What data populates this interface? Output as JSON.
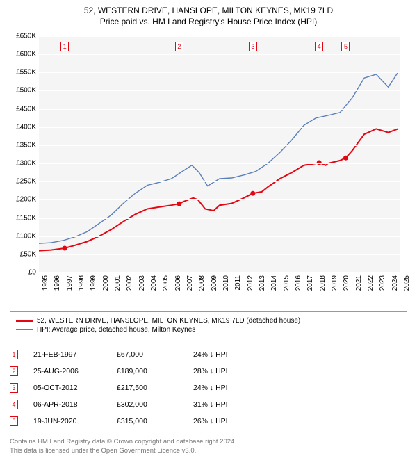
{
  "title": "52, WESTERN DRIVE, HANSLOPE, MILTON KEYNES, MK19 7LD",
  "subtitle": "Price paid vs. HM Land Registry's House Price Index (HPI)",
  "chart": {
    "type": "line",
    "background_color": "#f5f5f5",
    "grid_color": "#ffffff",
    "plot_fontsize": 10,
    "y": {
      "min": 0,
      "max": 650000,
      "step": 50000,
      "labels": [
        "£0",
        "£50K",
        "£100K",
        "£150K",
        "£200K",
        "£250K",
        "£300K",
        "£350K",
        "£400K",
        "£450K",
        "£500K",
        "£550K",
        "£600K",
        "£650K"
      ]
    },
    "x": {
      "min": 1995,
      "max": 2025,
      "step": 1,
      "labels": [
        "1995",
        "1996",
        "1997",
        "1998",
        "1999",
        "2000",
        "2001",
        "2002",
        "2003",
        "2004",
        "2005",
        "2006",
        "2007",
        "2008",
        "2009",
        "2010",
        "2011",
        "2012",
        "2013",
        "2014",
        "2015",
        "2016",
        "2017",
        "2018",
        "2019",
        "2020",
        "2021",
        "2022",
        "2023",
        "2024",
        "2025"
      ]
    },
    "series": [
      {
        "name": "property",
        "label": "52, WESTERN DRIVE, HANSLOPE, MILTON KEYNES, MK19 7LD (detached house)",
        "color": "#e30613",
        "line_width": 2,
        "points": [
          [
            1995.0,
            60000
          ],
          [
            1996.0,
            62000
          ],
          [
            1997.14,
            67000
          ],
          [
            1998.0,
            75000
          ],
          [
            1999.0,
            85000
          ],
          [
            2000.0,
            100000
          ],
          [
            2001.0,
            118000
          ],
          [
            2002.0,
            140000
          ],
          [
            2003.0,
            160000
          ],
          [
            2004.0,
            175000
          ],
          [
            2005.0,
            180000
          ],
          [
            2006.0,
            185000
          ],
          [
            2006.65,
            189000
          ],
          [
            2007.0,
            195000
          ],
          [
            2007.8,
            205000
          ],
          [
            2008.2,
            200000
          ],
          [
            2008.8,
            175000
          ],
          [
            2009.5,
            170000
          ],
          [
            2010.0,
            185000
          ],
          [
            2011.0,
            190000
          ],
          [
            2012.0,
            205000
          ],
          [
            2012.76,
            217500
          ],
          [
            2013.5,
            222000
          ],
          [
            2014.0,
            235000
          ],
          [
            2015.0,
            258000
          ],
          [
            2016.0,
            275000
          ],
          [
            2017.0,
            295000
          ],
          [
            2018.0,
            300000
          ],
          [
            2018.26,
            302000
          ],
          [
            2018.8,
            295000
          ],
          [
            2019.0,
            300000
          ],
          [
            2020.0,
            308000
          ],
          [
            2020.47,
            315000
          ],
          [
            2021.0,
            335000
          ],
          [
            2022.0,
            380000
          ],
          [
            2023.0,
            395000
          ],
          [
            2024.0,
            385000
          ],
          [
            2024.8,
            395000
          ]
        ]
      },
      {
        "name": "hpi",
        "label": "HPI: Average price, detached house, Milton Keynes",
        "color": "#5b7fb8",
        "line_width": 1.4,
        "points": [
          [
            1995.0,
            80000
          ],
          [
            1996.0,
            82000
          ],
          [
            1997.0,
            88000
          ],
          [
            1998.0,
            98000
          ],
          [
            1999.0,
            112000
          ],
          [
            2000.0,
            135000
          ],
          [
            2001.0,
            158000
          ],
          [
            2002.0,
            190000
          ],
          [
            2003.0,
            218000
          ],
          [
            2004.0,
            240000
          ],
          [
            2005.0,
            248000
          ],
          [
            2006.0,
            258000
          ],
          [
            2007.0,
            280000
          ],
          [
            2007.7,
            295000
          ],
          [
            2008.3,
            275000
          ],
          [
            2009.0,
            238000
          ],
          [
            2010.0,
            258000
          ],
          [
            2011.0,
            260000
          ],
          [
            2012.0,
            268000
          ],
          [
            2013.0,
            278000
          ],
          [
            2014.0,
            300000
          ],
          [
            2015.0,
            330000
          ],
          [
            2016.0,
            365000
          ],
          [
            2017.0,
            405000
          ],
          [
            2018.0,
            425000
          ],
          [
            2019.0,
            432000
          ],
          [
            2020.0,
            440000
          ],
          [
            2021.0,
            480000
          ],
          [
            2022.0,
            535000
          ],
          [
            2023.0,
            545000
          ],
          [
            2024.0,
            510000
          ],
          [
            2024.8,
            550000
          ]
        ]
      }
    ],
    "sale_markers": [
      {
        "n": "1",
        "x": 1997.14,
        "y": 67000
      },
      {
        "n": "2",
        "x": 2006.65,
        "y": 189000
      },
      {
        "n": "3",
        "x": 2012.76,
        "y": 217500
      },
      {
        "n": "4",
        "x": 2018.26,
        "y": 302000
      },
      {
        "n": "5",
        "x": 2020.47,
        "y": 315000
      }
    ],
    "marker_color": "#e30613",
    "marker_fill": "#e30613"
  },
  "legend": {
    "items": [
      {
        "color": "#e30613",
        "width": 2,
        "label": "52, WESTERN DRIVE, HANSLOPE, MILTON KEYNES, MK19 7LD (detached house)"
      },
      {
        "color": "#5b7fb8",
        "width": 1.4,
        "label": "HPI: Average price, detached house, Milton Keynes"
      }
    ]
  },
  "transactions": [
    {
      "n": "1",
      "date": "21-FEB-1997",
      "price": "£67,000",
      "diff": "24% ↓ HPI"
    },
    {
      "n": "2",
      "date": "25-AUG-2006",
      "price": "£189,000",
      "diff": "28% ↓ HPI"
    },
    {
      "n": "3",
      "date": "05-OCT-2012",
      "price": "£217,500",
      "diff": "24% ↓ HPI"
    },
    {
      "n": "4",
      "date": "06-APR-2018",
      "price": "£302,000",
      "diff": "31% ↓ HPI"
    },
    {
      "n": "5",
      "date": "19-JUN-2020",
      "price": "£315,000",
      "diff": "26% ↓ HPI"
    }
  ],
  "footer": {
    "line1": "Contains HM Land Registry data © Crown copyright and database right 2024.",
    "line2": "This data is licensed under the Open Government Licence v3.0."
  }
}
